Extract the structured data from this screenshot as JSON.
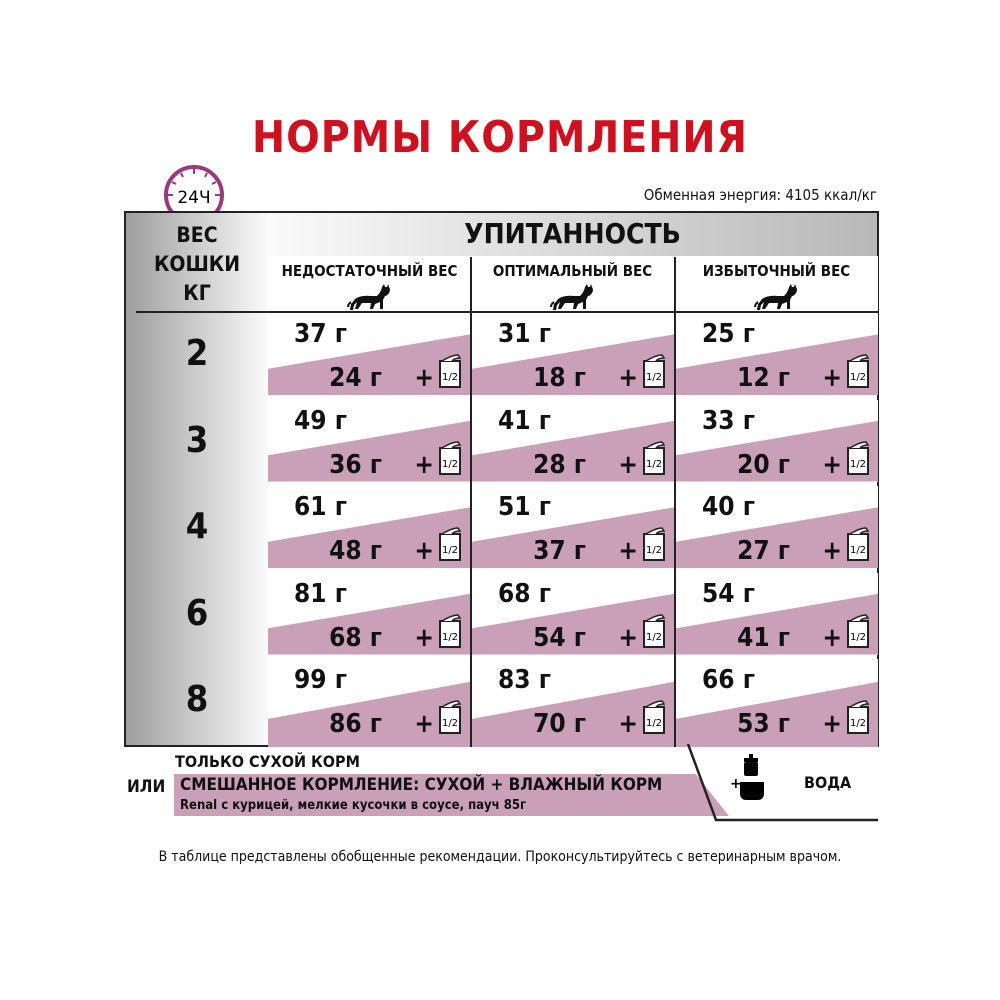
{
  "title": "НОРМЫ КОРМЛЕНИЯ",
  "energy": "Обменная энергия: 4105 ккал/кг",
  "clock_label": "24Ч",
  "weight_header": "ВЕС\nКОШКИ\nКГ",
  "condition_header": "УПИТАННОСТЬ",
  "columns": [
    "НЕДОСТАТОЧНЫЙ ВЕС",
    "ОПТИМАЛЬНЫЙ ВЕС",
    "ИЗБЫТОЧНЫЙ ВЕС"
  ],
  "rows": [
    {
      "weight": "2",
      "cells": [
        {
          "dry": "37 г",
          "wet": "24 г"
        },
        {
          "dry": "31 г",
          "wet": "18 г"
        },
        {
          "dry": "25 г",
          "wet": "12 г"
        }
      ]
    },
    {
      "weight": "3",
      "cells": [
        {
          "dry": "49 г",
          "wet": "36 г"
        },
        {
          "dry": "41 г",
          "wet": "28 г"
        },
        {
          "dry": "33 г",
          "wet": "20 г"
        }
      ]
    },
    {
      "weight": "4",
      "cells": [
        {
          "dry": "61 г",
          "wet": "48 г"
        },
        {
          "dry": "51 г",
          "wet": "37 г"
        },
        {
          "dry": "40 г",
          "wet": "27 г"
        }
      ]
    },
    {
      "weight": "6",
      "cells": [
        {
          "dry": "81 г",
          "wet": "68 г"
        },
        {
          "dry": "68 г",
          "wet": "54 г"
        },
        {
          "dry": "54 г",
          "wet": "41 г"
        }
      ]
    },
    {
      "weight": "8",
      "cells": [
        {
          "dry": "99 г",
          "wet": "86 г"
        },
        {
          "dry": "83 г",
          "wet": "70 г"
        },
        {
          "dry": "66 г",
          "wet": "53 г"
        }
      ]
    }
  ],
  "plus": "+",
  "pouch_label": "1/2",
  "legend": {
    "dry_only": "ТОЛЬКО СУХОЙ КОРМ",
    "or": "ИЛИ",
    "mixed": "СМЕШАННОЕ КОРМЛЕНИЕ: СУХОЙ + ВЛАЖНЫЙ КОРМ",
    "mixed_sub": "Renal с курицей, мелкие кусочки в соусе, пауч 85г",
    "water": "ВОДА"
  },
  "footer": "В таблице представлены обобщенные рекомендации. Проконсультируйтесь с ветеринарным врачом.",
  "colors": {
    "title": "#d0101e",
    "pink": "#c9a0b8",
    "clock": "#9a3a7a"
  }
}
